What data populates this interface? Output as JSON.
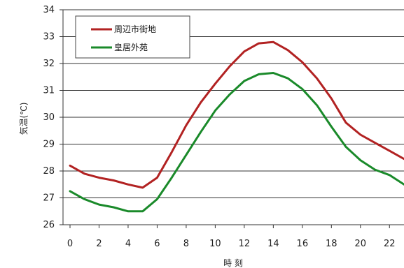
{
  "chart_data": {
    "type": "line",
    "xlabel": "時 刻",
    "ylabel": "気温(℃)",
    "x": [
      0,
      1,
      2,
      3,
      4,
      5,
      6,
      7,
      8,
      9,
      10,
      11,
      12,
      13,
      14,
      15,
      16,
      17,
      18,
      19,
      20,
      21,
      22,
      23
    ],
    "x_ticks": [
      0,
      2,
      4,
      6,
      8,
      10,
      12,
      14,
      16,
      18,
      20,
      22
    ],
    "y_ticks": [
      26,
      27,
      28,
      29,
      30,
      31,
      32,
      33,
      34
    ],
    "xlim": [
      0,
      23
    ],
    "ylim": [
      26,
      34
    ],
    "grid": "horizontal",
    "legend_position": "top-left",
    "series": [
      {
        "name": "周辺市街地",
        "color": "#b22222",
        "values": [
          28.2,
          27.9,
          27.75,
          27.65,
          27.5,
          27.38,
          27.75,
          28.7,
          29.7,
          30.55,
          31.25,
          31.9,
          32.45,
          32.75,
          32.8,
          32.5,
          32.05,
          31.45,
          30.7,
          29.8,
          29.35,
          29.05,
          28.75,
          28.45
        ]
      },
      {
        "name": "皇居外苑",
        "color": "#1a8a2a",
        "values": [
          27.25,
          26.95,
          26.75,
          26.65,
          26.5,
          26.5,
          26.95,
          27.75,
          28.6,
          29.45,
          30.25,
          30.85,
          31.35,
          31.6,
          31.65,
          31.45,
          31.05,
          30.45,
          29.65,
          28.9,
          28.4,
          28.05,
          27.85,
          27.5
        ]
      }
    ]
  }
}
